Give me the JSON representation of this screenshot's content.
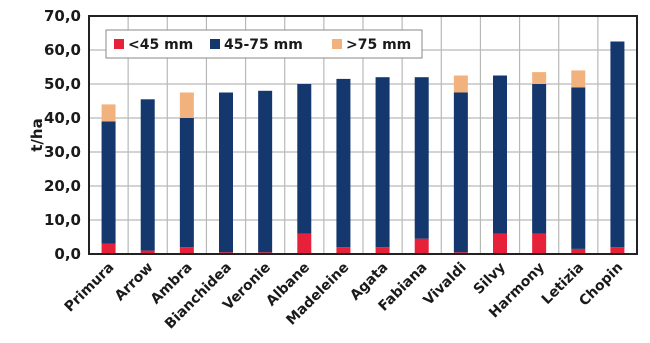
{
  "chart_data": {
    "type": "bar",
    "stacked": true,
    "title": "",
    "xlabel": "",
    "ylabel": "t/ha",
    "ylim": [
      0,
      70
    ],
    "yticks": [
      "0,0",
      "10,0",
      "20,0",
      "30,0",
      "40,0",
      "50,0",
      "60,0",
      "70,0"
    ],
    "grid": true,
    "legend_position": "top-left",
    "categories": [
      "Primura",
      "Arrow",
      "Ambra",
      "Bianchidea",
      "Veronie",
      "Albane",
      "Madeleine",
      "Agata",
      "Fabiana",
      "Vivaldi",
      "Silvy",
      "Harmony",
      "Letizia",
      "Chopin"
    ],
    "series": [
      {
        "name": "<45 mm",
        "color": "#e8213a",
        "values": [
          3.0,
          1.0,
          2.0,
          0.5,
          0.5,
          6.0,
          2.0,
          2.0,
          4.5,
          0.5,
          6.0,
          6.0,
          1.5,
          2.0
        ]
      },
      {
        "name": "45-75 mm",
        "color": "#14376d",
        "values": [
          36.0,
          44.5,
          38.0,
          47.0,
          47.5,
          44.0,
          49.5,
          50.0,
          47.5,
          47.0,
          46.5,
          44.0,
          47.5,
          60.5
        ]
      },
      {
        "name": ">75 mm",
        "color": "#f2b27e",
        "values": [
          5.0,
          0.0,
          7.5,
          0.0,
          0.0,
          0.0,
          0.0,
          0.0,
          0.0,
          5.0,
          0.0,
          3.5,
          5.0,
          0.0
        ]
      }
    ]
  }
}
